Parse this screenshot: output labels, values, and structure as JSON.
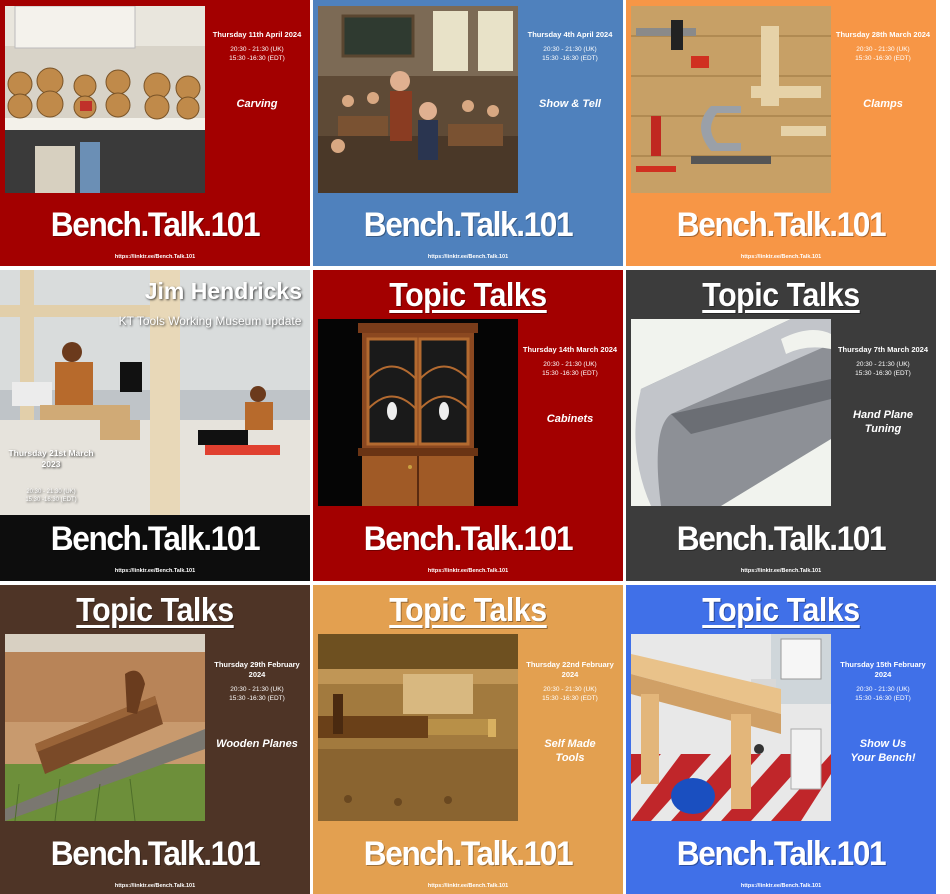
{
  "brand": "Bench.Talk.101",
  "url": "https://linktr.ee/Bench.Talk.101",
  "time_uk": "20:30 - 21:30 (UK)",
  "time_edt": "15:30 -16:30  (EDT)",
  "heading": "Topic Talks",
  "colors": {
    "crimson": "#a30000",
    "steel_blue": "#4f81bd",
    "orange": "#f79646",
    "charcoal": "#3c3c3c",
    "brown": "#4e3426",
    "tan": "#e3a050",
    "royal_blue": "#4070e8",
    "black": "#0d0d0d"
  },
  "cards": [
    {
      "date": "Thursday 11th April 2024",
      "topic": "Carving",
      "bg": "#a30000",
      "image": "carved-bears-photo"
    },
    {
      "date": "Thursday 4th April 2024",
      "topic": "Show & Tell",
      "bg": "#4f81bd",
      "image": "classroom-show-tell-photo"
    },
    {
      "date": "Thursday 28th March 2024",
      "topic": "Clamps",
      "bg": "#f79646",
      "image": "clamps-on-bench-photo"
    },
    {
      "name": "Jim Hendricks",
      "subtitle": "KT Tools Working Museum update",
      "date": "Thursday 21st March 2023",
      "bg": "#0d0d0d",
      "image": "carved-figures-museum-photo"
    },
    {
      "date": "Thursday 14th March 2024",
      "topic": "Cabinets",
      "bg": "#a30000",
      "image": "cabinet-photo"
    },
    {
      "date": "Thursday 7th March 2024",
      "topic": "Hand Plane Tuning",
      "bg": "#3c3c3c",
      "image": "plane-iron-photo"
    },
    {
      "date": "Thursday 29th February 2024",
      "topic": "Wooden Planes",
      "bg": "#4e3426",
      "image": "wooden-plane-field-photo"
    },
    {
      "date": "Thursday 22nd February 2024",
      "topic": "Self Made Tools",
      "bg": "#e3a050",
      "image": "wooden-vise-photo"
    },
    {
      "date": "Thursday 15th February 2024",
      "topic": "Show Us Your Bench!",
      "bg": "#4070e8",
      "image": "workbench-photo"
    }
  ]
}
